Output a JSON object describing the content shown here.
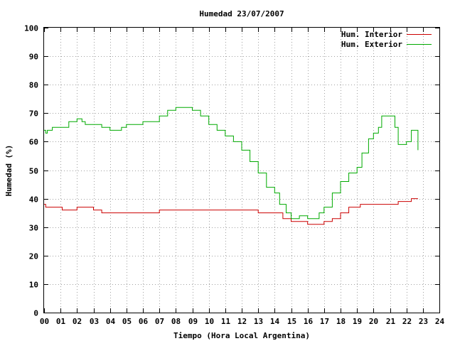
{
  "chart_data": {
    "type": "line",
    "title": "Humedad 23/07/2007",
    "xlabel": "Tiempo (Hora Local Argentina)",
    "ylabel": "Humedad (%)",
    "xlim": [
      0,
      24
    ],
    "ylim": [
      0,
      100
    ],
    "x_ticks": [
      "00",
      "01",
      "02",
      "03",
      "04",
      "05",
      "06",
      "07",
      "08",
      "09",
      "10",
      "11",
      "12",
      "13",
      "14",
      "15",
      "16",
      "17",
      "18",
      "19",
      "20",
      "21",
      "22",
      "23",
      "24"
    ],
    "y_ticks": [
      "0",
      "10",
      "20",
      "30",
      "40",
      "50",
      "60",
      "70",
      "80",
      "90",
      "100"
    ],
    "grid": true,
    "legend_position": "top-right",
    "series": [
      {
        "name": "Hum. Interior",
        "color": "#cc0000",
        "x": [
          0,
          0.1,
          0.1,
          1.1,
          1.1,
          2.0,
          2.0,
          3.0,
          3.5,
          3.5,
          7.0,
          7.0,
          10.0,
          13.0,
          13.0,
          14.5,
          14.5,
          15.0,
          15.0,
          16.0,
          16.0,
          17.0,
          17.0,
          17.5,
          18.0,
          18.0,
          18.5,
          18.5,
          19.2,
          19.2,
          20.0,
          20.5,
          20.5,
          21.5,
          21.5,
          22.3,
          22.3,
          22.7
        ],
        "y": [
          38,
          38,
          37,
          37,
          36,
          36,
          37,
          36,
          36,
          35,
          35,
          36,
          36,
          36,
          35,
          35,
          33,
          33,
          32,
          32,
          31,
          31,
          32,
          33,
          34,
          35,
          36,
          37,
          37,
          38,
          38,
          38,
          38,
          38,
          39,
          39,
          40,
          40
        ]
      },
      {
        "name": "Hum. Exterior",
        "color": "#00aa00",
        "x": [
          0,
          0.1,
          0.2,
          0.4,
          0.5,
          1.0,
          1.5,
          2.0,
          2.1,
          2.3,
          2.5,
          3.0,
          3.5,
          4.0,
          4.5,
          4.7,
          5.0,
          5.5,
          6.0,
          6.5,
          7.0,
          7.5,
          8.0,
          8.5,
          9.0,
          9.5,
          10.0,
          10.5,
          11.0,
          11.5,
          12.0,
          12.5,
          13.0,
          13.5,
          14.0,
          14.3,
          14.7,
          15.0,
          15.5,
          16.0,
          16.3,
          16.7,
          17.0,
          17.5,
          18.0,
          18.5,
          19.0,
          19.3,
          19.7,
          20.0,
          20.3,
          20.5,
          21.0,
          21.3,
          21.5,
          22.0,
          22.3,
          22.7
        ],
        "y": [
          64,
          63,
          64,
          64,
          65,
          65,
          67,
          68,
          68,
          67,
          66,
          66,
          65,
          64,
          64,
          65,
          66,
          66,
          67,
          67,
          69,
          71,
          72,
          72,
          71,
          69,
          66,
          64,
          62,
          60,
          57,
          53,
          49,
          44,
          42,
          38,
          35,
          33,
          34,
          33,
          33,
          35,
          37,
          42,
          46,
          49,
          51,
          56,
          61,
          63,
          65,
          69,
          69,
          65,
          59,
          60,
          64,
          57
        ]
      }
    ]
  }
}
